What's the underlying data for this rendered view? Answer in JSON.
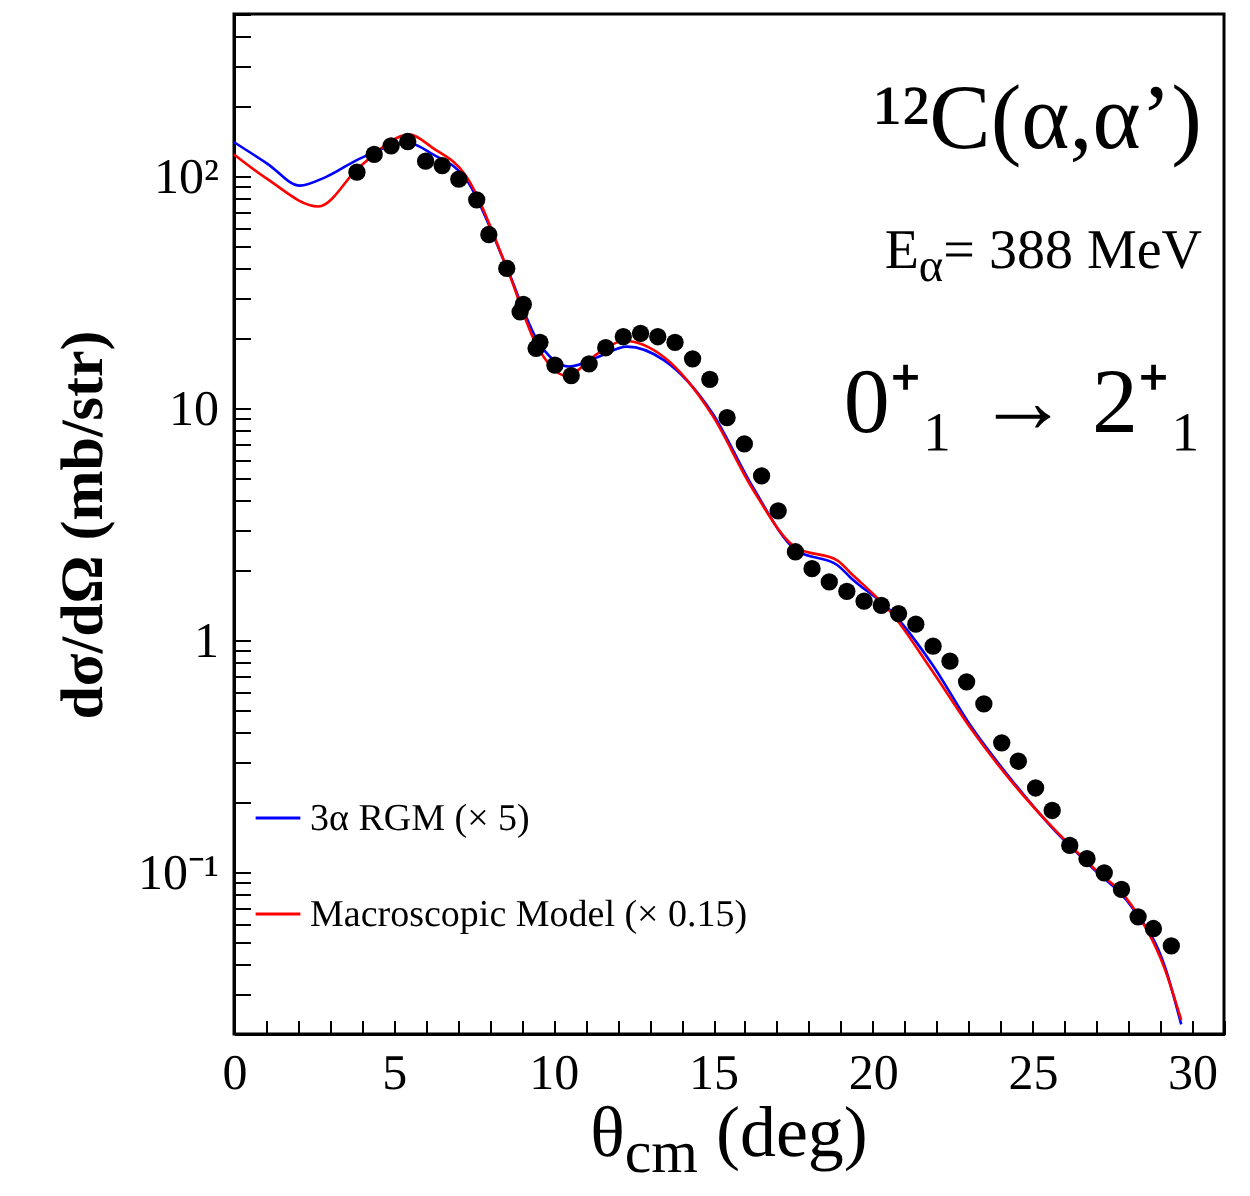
{
  "chart_data": {
    "type": "line",
    "xlabel": "θ$_{cm}$ (deg)",
    "ylabel": "dσ/dΩ (mb/str)",
    "annotations": [
      "¹²C(α,α’)",
      "E$_{α}$= 388 MeV",
      "0⁺₁ → 2⁺₁"
    ],
    "log": "y",
    "grid": false,
    "legend": "bottom left",
    "line_style": "solid",
    "xlim": [
      0,
      31
    ],
    "xticks": [
      0,
      {
        "value": 1,
        "label": null
      },
      {
        "value": 2,
        "label": null
      },
      {
        "value": 3,
        "label": null
      },
      {
        "value": 4,
        "label": null
      },
      5,
      {
        "value": 6,
        "label": null
      },
      {
        "value": 7,
        "label": null
      },
      {
        "value": 8,
        "label": null
      },
      {
        "value": 9,
        "label": null
      },
      10,
      {
        "value": 11,
        "label": null
      },
      {
        "value": 12,
        "label": null
      },
      {
        "value": 13,
        "label": null
      },
      {
        "value": 14,
        "label": null
      },
      15,
      {
        "value": 16,
        "label": null
      },
      {
        "value": 17,
        "label": null
      },
      {
        "value": 18,
        "label": null
      },
      {
        "value": 19,
        "label": null
      },
      20,
      {
        "value": 21,
        "label": null
      },
      {
        "value": 22,
        "label": null
      },
      {
        "value": 23,
        "label": null
      },
      {
        "value": 24,
        "label": null
      },
      25,
      {
        "value": 26,
        "label": null
      },
      {
        "value": 27,
        "label": null
      },
      {
        "value": 28,
        "label": null
      },
      {
        "value": 29,
        "label": null
      },
      30,
      {
        "value": 31,
        "label": null
      }
    ],
    "ylim": [
      0.02,
      500
    ],
    "yticks": [
      {
        "value": 0.03,
        "label": null
      },
      {
        "value": 0.04,
        "label": null
      },
      {
        "value": 0.05,
        "label": null
      },
      {
        "value": 0.06,
        "label": null
      },
      {
        "value": 0.07,
        "label": null
      },
      {
        "value": 0.08,
        "label": null
      },
      {
        "value": 0.09,
        "label": null
      },
      {
        "value": 0.1,
        "label": "10⁻¹"
      },
      {
        "value": 0.2,
        "label": null
      },
      {
        "value": 0.3,
        "label": null
      },
      {
        "value": 0.4,
        "label": null
      },
      {
        "value": 0.5,
        "label": null
      },
      {
        "value": 0.6,
        "label": null
      },
      {
        "value": 0.7,
        "label": null
      },
      {
        "value": 0.8,
        "label": null
      },
      {
        "value": 0.9,
        "label": null
      },
      1,
      {
        "value": 2,
        "label": null
      },
      {
        "value": 3,
        "label": null
      },
      {
        "value": 4,
        "label": null
      },
      {
        "value": 5,
        "label": null
      },
      {
        "value": 6,
        "label": null
      },
      {
        "value": 7,
        "label": null
      },
      {
        "value": 8,
        "label": null
      },
      {
        "value": 9,
        "label": null
      },
      10,
      {
        "value": 20,
        "label": null
      },
      {
        "value": 30,
        "label": null
      },
      {
        "value": 40,
        "label": null
      },
      {
        "value": 50,
        "label": null
      },
      {
        "value": 60,
        "label": null
      },
      {
        "value": 70,
        "label": null
      },
      {
        "value": 80,
        "label": null
      },
      {
        "value": 90,
        "label": null
      },
      {
        "value": 100,
        "label": "10²"
      },
      {
        "value": 200,
        "label": null
      },
      {
        "value": 300,
        "label": null
      },
      {
        "value": 400,
        "label": null
      },
      {
        "value": 500,
        "label": null
      }
    ],
    "series": [
      {
        "name": "3α RGM (× 5)",
        "type": "line",
        "color": "#0000ff",
        "x": [
          0,
          1.05,
          2.06,
          2.87,
          3.94,
          5.46,
          6.23,
          7.27,
          8.52,
          9.5,
          10.5,
          11.4,
          12.3,
          13.46,
          14.98,
          16.23,
          17.6,
          18.9,
          19.3,
          20.6,
          21.85,
          23.1,
          24.35,
          25.6,
          26.85,
          28.1,
          29.15,
          29.66
        ],
        "values": [
          140,
          113,
          91,
          99,
          119,
          139,
          124,
          97,
          41,
          19.6,
          15.1,
          16.6,
          18.4,
          16.1,
          9.5,
          4.6,
          2.44,
          2.1,
          1.86,
          1.32,
          0.79,
          0.42,
          0.249,
          0.156,
          0.105,
          0.071,
          0.039,
          0.022
        ]
      },
      {
        "name": "Macroscopic Model (× 0.15)",
        "type": "line",
        "color": "#ff0000",
        "x": [
          0,
          1.05,
          2.64,
          3.94,
          5.5,
          6.23,
          7.27,
          8.52,
          9.5,
          10.4,
          11.4,
          12.2,
          13.46,
          14.98,
          16.23,
          17.6,
          18.9,
          19.3,
          20.6,
          21.85,
          23.1,
          24.35,
          25.6,
          26.85,
          28.1,
          29.15,
          29.66
        ],
        "values": [
          124,
          97,
          74,
          110,
          151,
          132,
          100,
          41,
          18.4,
          13.8,
          17.2,
          19.5,
          16.6,
          9.3,
          4.5,
          2.5,
          2.2,
          1.95,
          1.3,
          0.74,
          0.41,
          0.245,
          0.157,
          0.106,
          0.072,
          0.038,
          0.023
        ]
      },
      {
        "type": "scatter",
        "marker": "circle",
        "color": "#000000",
        "x": [
          3.85,
          4.39,
          4.92,
          5.44,
          6.0,
          6.52,
          7.04,
          7.6,
          7.98,
          8.54,
          8.96,
          9.06,
          9.46,
          9.58,
          10.05,
          10.56,
          11.12,
          11.64,
          12.19,
          12.73,
          13.27,
          13.81,
          14.36,
          14.9,
          15.44,
          15.98,
          16.52,
          17.04,
          17.58,
          18.1,
          18.64,
          19.19,
          19.73,
          20.27,
          20.81,
          21.35,
          21.89,
          22.42,
          22.94,
          23.48,
          24.04,
          24.56,
          25.1,
          25.62,
          26.17,
          26.71,
          27.25,
          27.79,
          28.31,
          28.79,
          29.35
        ],
        "values": [
          104,
          124,
          135,
          141,
          116,
          111,
          97,
          79,
          56,
          40,
          26,
          28,
          18.1,
          19.2,
          15.3,
          13.8,
          15.5,
          18.2,
          20.3,
          21,
          20.3,
          19.2,
          16.3,
          13.3,
          9.1,
          7.0,
          5.1,
          3.6,
          2.4,
          2.03,
          1.78,
          1.62,
          1.47,
          1.41,
          1.3,
          1.17,
          0.94,
          0.81,
          0.66,
          0.53,
          0.36,
          0.3,
          0.23,
          0.184,
          0.13,
          0.114,
          0.099,
          0.084,
          0.064,
          0.057,
          0.048
        ]
      }
    ]
  }
}
